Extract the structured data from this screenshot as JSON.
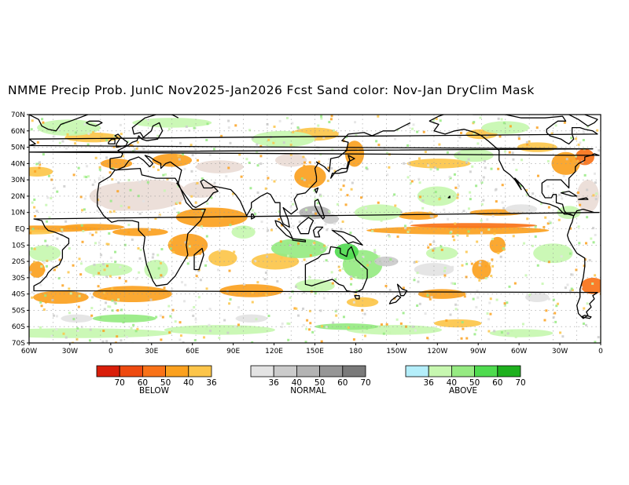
{
  "title": "NMME Precip Prob. JunIC  Nov2025-Jan2026 Fcst  Sand color: Nov-Jan DryClim Mask",
  "map": {
    "lat_labels": [
      "70N",
      "60N",
      "50N",
      "40N",
      "30N",
      "20N",
      "10N",
      "EQ",
      "10S",
      "20S",
      "30S",
      "40S",
      "50S",
      "60S",
      "70S"
    ],
    "lon_labels": [
      "60W",
      "30W",
      "0",
      "30E",
      "60E",
      "90E",
      "120E",
      "150E",
      "180",
      "150W",
      "120W",
      "90W",
      "60W",
      "30W",
      "0"
    ]
  },
  "legend": {
    "below": {
      "label": "BELOW",
      "colors": [
        "#d91e0a",
        "#ee4a10",
        "#f97218",
        "#fba11f",
        "#fcc54a"
      ],
      "ticks": [
        "70",
        "60",
        "50",
        "40",
        "36"
      ]
    },
    "normal": {
      "label": "NORMAL",
      "colors": [
        "#e3e3e3",
        "#cbcbcb",
        "#b3b3b3",
        "#969696",
        "#7a7a7a"
      ],
      "ticks": [
        "36",
        "40",
        "50",
        "60",
        "70"
      ]
    },
    "above": {
      "label": "ABOVE",
      "colors": [
        "#b4eefa",
        "#c7f7b0",
        "#96ea82",
        "#4fdb4f",
        "#1eb01e"
      ],
      "ticks": [
        "36",
        "40",
        "50",
        "60",
        "70"
      ]
    }
  },
  "colors": {
    "dry_mask": "#ecdfd9",
    "coastline": "#000000",
    "grid": "#9a9a9a"
  }
}
